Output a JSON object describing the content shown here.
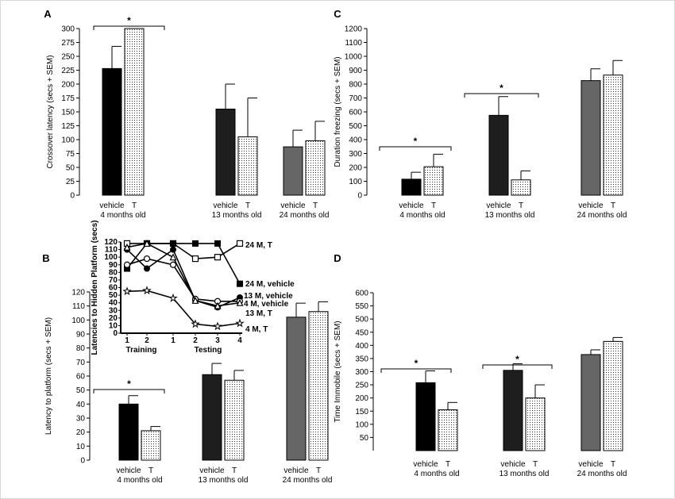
{
  "colors": {
    "vehicle_4": "#000000",
    "vehicle_13": "#1e1e1e",
    "vehicle_24": "#666666",
    "treated_fill": "#ffffff",
    "stipple": "#333333"
  },
  "chart_data": [
    {
      "id": "A",
      "type": "bar",
      "panel_label": "A",
      "ylabel": "Crossover latency (secs + SEM)",
      "ylim": [
        0,
        300
      ],
      "yticks": [
        "0",
        "25",
        "50",
        "75",
        "100",
        "125",
        "150",
        "175",
        "200",
        "225",
        "250",
        "275",
        "300"
      ],
      "groups": [
        {
          "bars": [
            {
              "label": "vehicle",
              "value": 228,
              "err": 40,
              "kind": "vehicle_4"
            },
            {
              "label": "T",
              "value": 300,
              "err": 0,
              "kind": "treated"
            }
          ],
          "group_label": "4 months old"
        },
        {
          "bars": [
            {
              "label": "vehicle",
              "value": 155,
              "err": 45,
              "kind": "vehicle_13"
            },
            {
              "label": "T",
              "value": 105,
              "err": 70,
              "kind": "treated"
            }
          ],
          "group_label": "13 months old"
        },
        {
          "bars": [
            {
              "label": "vehicle",
              "value": 87,
              "err": 30,
              "kind": "vehicle_24"
            },
            {
              "label": "T",
              "value": 98,
              "err": 35,
              "kind": "treated"
            }
          ],
          "group_label": "24 months old"
        }
      ],
      "significance": [
        {
          "group": 0,
          "text": "*"
        }
      ]
    },
    {
      "id": "C",
      "type": "bar",
      "panel_label": "C",
      "ylabel": "Duration freezing (secs + SEM)",
      "ylim": [
        0,
        1200
      ],
      "yticks": [
        "0",
        "100",
        "200",
        "300",
        "400",
        "500",
        "600",
        "700",
        "800",
        "900",
        "1000",
        "1100",
        "1200"
      ],
      "groups": [
        {
          "bars": [
            {
              "label": "vehicle",
              "value": 115,
              "err": 50,
              "kind": "vehicle_4"
            },
            {
              "label": "T",
              "value": 205,
              "err": 90,
              "kind": "treated"
            }
          ],
          "group_label": "4 months old"
        },
        {
          "bars": [
            {
              "label": "vehicle",
              "value": 575,
              "err": 135,
              "kind": "vehicle_13"
            },
            {
              "label": "T",
              "value": 110,
              "err": 65,
              "kind": "treated"
            }
          ],
          "group_label": "13 months old"
        },
        {
          "bars": [
            {
              "label": "vehicle",
              "value": 825,
              "err": 85,
              "kind": "vehicle_24"
            },
            {
              "label": "T",
              "value": 865,
              "err": 105,
              "kind": "treated"
            }
          ],
          "group_label": "24 months old"
        }
      ],
      "significance": [
        {
          "group": 0,
          "text": "*"
        },
        {
          "group": 1,
          "text": "*"
        }
      ]
    },
    {
      "id": "B",
      "type": "bar",
      "panel_label": "B",
      "ylabel": "Latency to platform (secs + SEM)",
      "ylim": [
        0,
        120
      ],
      "yticks": [
        "0",
        "10",
        "20",
        "30",
        "40",
        "50",
        "60",
        "70",
        "80",
        "90",
        "100",
        "110",
        "120"
      ],
      "groups": [
        {
          "bars": [
            {
              "label": "vehicle",
              "value": 40,
              "err": 6,
              "kind": "vehicle_4"
            },
            {
              "label": "T",
              "value": 21,
              "err": 3,
              "kind": "treated"
            }
          ],
          "group_label": "4 months old"
        },
        {
          "bars": [
            {
              "label": "vehicle",
              "value": 61,
              "err": 8,
              "kind": "vehicle_13"
            },
            {
              "label": "T",
              "value": 57,
              "err": 7,
              "kind": "treated"
            }
          ],
          "group_label": "13 months old"
        },
        {
          "bars": [
            {
              "label": "vehicle",
              "value": 102,
              "err": 10,
              "kind": "vehicle_24"
            },
            {
              "label": "T",
              "value": 106,
              "err": 7,
              "kind": "treated"
            }
          ],
          "group_label": "24 months old"
        }
      ],
      "significance": [
        {
          "group": 0,
          "text": "*"
        }
      ]
    },
    {
      "id": "D",
      "type": "bar",
      "panel_label": "D",
      "ylabel": "Time Immobile (secs + SEM)",
      "ylim": [
        0,
        600
      ],
      "yticks": [
        "50",
        "100",
        "150",
        "200",
        "250",
        "300",
        "350",
        "400",
        "450",
        "500",
        "550",
        "600"
      ],
      "groups": [
        {
          "bars": [
            {
              "label": "vehicle",
              "value": 258,
              "err": 45,
              "kind": "vehicle_4"
            },
            {
              "label": "T",
              "value": 155,
              "err": 28,
              "kind": "treated"
            }
          ],
          "group_label": "4 months old"
        },
        {
          "bars": [
            {
              "label": "vehicle",
              "value": 305,
              "err": 25,
              "kind": "vehicle_13"
            },
            {
              "label": "T",
              "value": 200,
              "err": 50,
              "kind": "treated"
            }
          ],
          "group_label": "13 months old"
        },
        {
          "bars": [
            {
              "label": "vehicle",
              "value": 365,
              "err": 18,
              "kind": "vehicle_24"
            },
            {
              "label": "T",
              "value": 415,
              "err": 15,
              "kind": "treated"
            }
          ],
          "group_label": "24 months old"
        }
      ],
      "significance": [
        {
          "group": 0,
          "text": "*"
        },
        {
          "group": 1,
          "text": "*"
        }
      ]
    },
    {
      "id": "B-inset",
      "type": "line",
      "ylabel": "Latencies to Hidden Platform (secs)",
      "ylim": [
        0,
        120
      ],
      "yticks": [
        "0",
        "10",
        "20",
        "30",
        "40",
        "50",
        "60",
        "70",
        "80",
        "90",
        "100",
        "110",
        "120"
      ],
      "x": [
        "1",
        "2",
        "1",
        "2",
        "3",
        "4"
      ],
      "x_group_labels": [
        "Training",
        "Testing"
      ],
      "series": [
        {
          "name": "24 M, T",
          "marker": "square-open",
          "values": [
            118,
            118,
            118,
            98,
            100,
            118
          ]
        },
        {
          "name": "24 M, vehicle",
          "marker": "square-filled",
          "values": [
            85,
            118,
            118,
            118,
            118,
            65
          ]
        },
        {
          "name": "13 M, vehicle",
          "marker": "circle-filled",
          "values": [
            110,
            85,
            110,
            43,
            34,
            47
          ]
        },
        {
          "name": "4 M, vehicle",
          "marker": "circle-open",
          "values": [
            90,
            98,
            90,
            45,
            42,
            42
          ]
        },
        {
          "name": "13 M, T",
          "marker": "triangle-open",
          "values": [
            113,
            118,
            100,
            43,
            36,
            40
          ]
        },
        {
          "name": "4 M, T",
          "marker": "star",
          "values": [
            55,
            56,
            46,
            12,
            9,
            13
          ]
        }
      ]
    }
  ]
}
